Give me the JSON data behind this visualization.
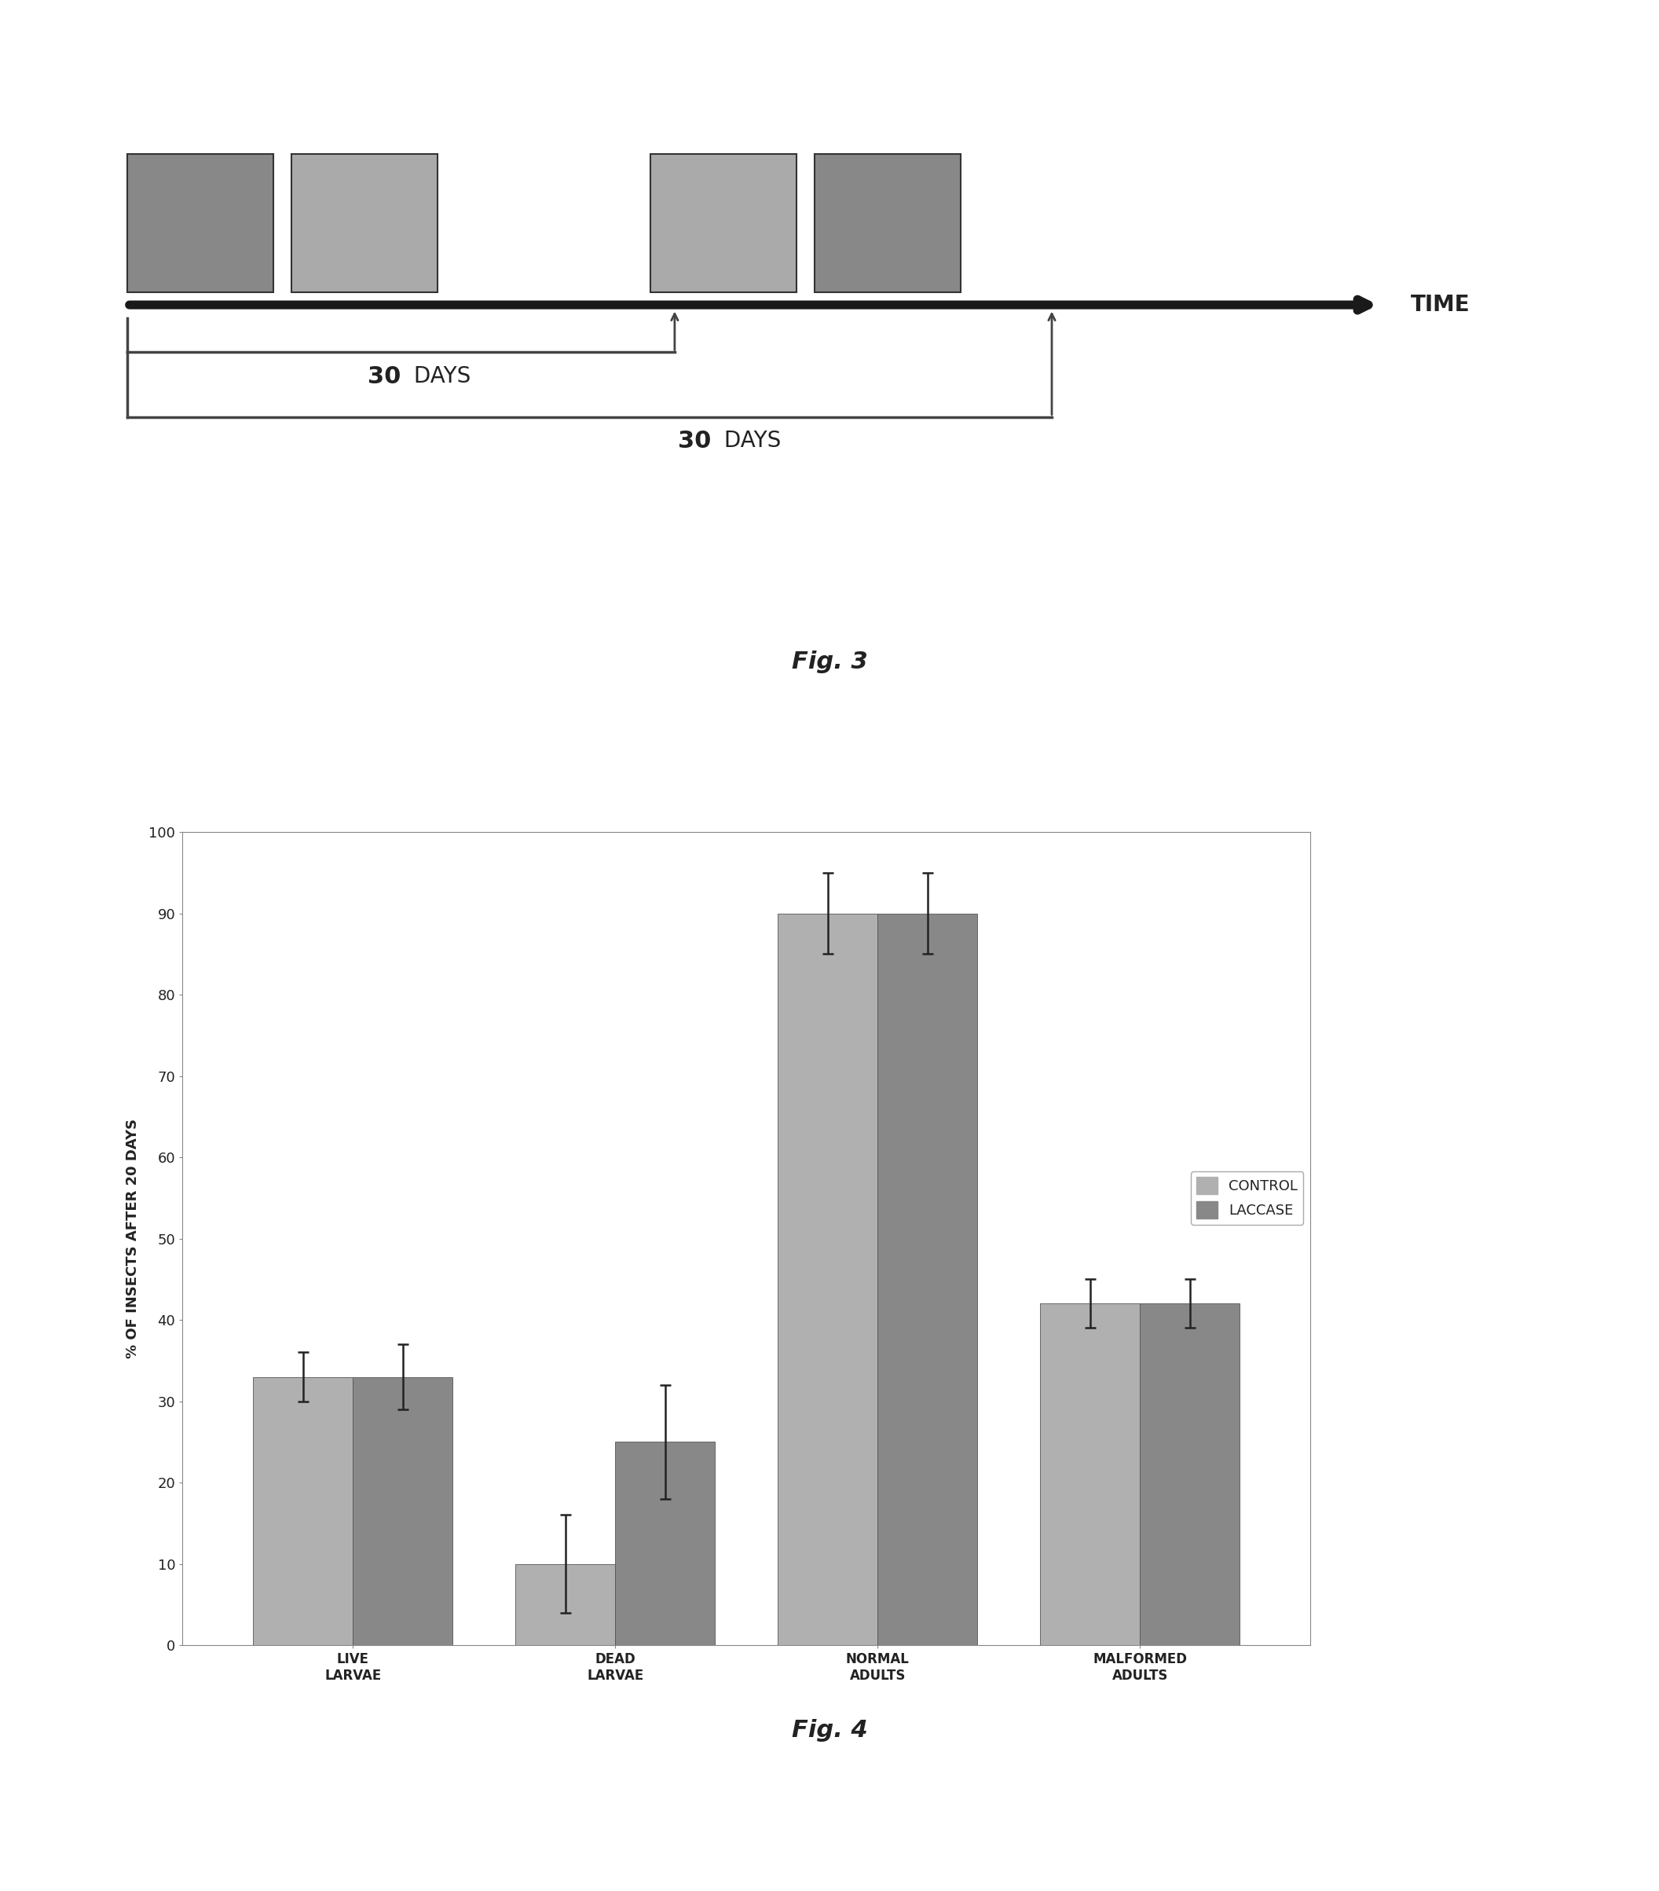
{
  "fig3_label": "Fig. 3",
  "fig4_label": "Fig. 4",
  "timeline_label": "TIME",
  "bar_categories": [
    "LIVE\nLARVAE",
    "DEAD\nLARVAE",
    "NORMAL\nADULTS",
    "MALFORMED\nADULTS"
  ],
  "control_values": [
    33,
    10,
    90,
    42
  ],
  "laccase_values": [
    33,
    25,
    90,
    42
  ],
  "control_errors": [
    3,
    6,
    5,
    3
  ],
  "laccase_errors": [
    4,
    7,
    5,
    3
  ],
  "ylabel": "% OF INSECTS AFTER 20 DAYS",
  "ylim": [
    0,
    100
  ],
  "yticks": [
    0,
    10,
    20,
    30,
    40,
    50,
    60,
    70,
    80,
    90,
    100
  ],
  "legend_labels": [
    "CONTROL",
    "LACCASE"
  ],
  "bar_color_control": "#b0b0b0",
  "bar_color_laccase": "#888888",
  "bar_width": 0.38,
  "background_color": "#ffffff",
  "chart_bg": "#ffffff",
  "timeline_bar_color": "#1a1a1a",
  "bracket_color": "#444444",
  "days_fontsize": 22,
  "ylabel_fontsize": 13,
  "tick_fontsize": 13,
  "xtick_fontsize": 12
}
